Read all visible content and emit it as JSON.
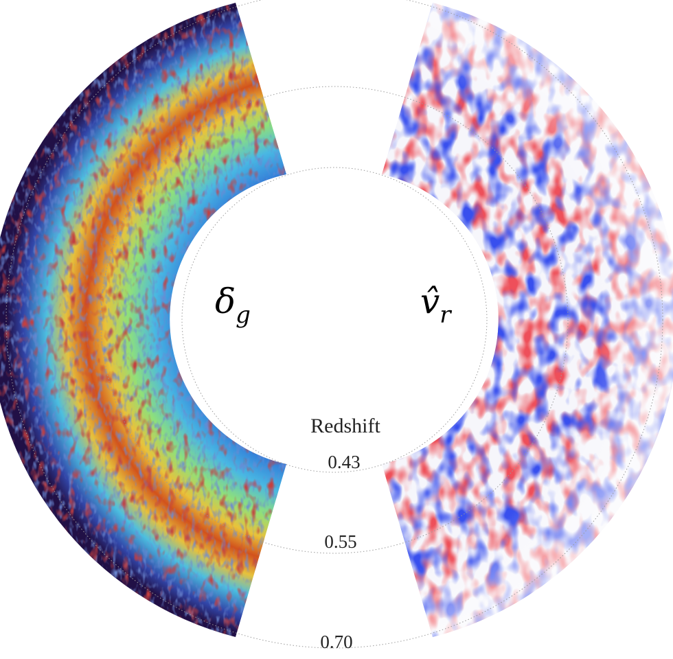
{
  "panels": {
    "left": {
      "symbol": "δ",
      "subscript": "g",
      "colormap": "turbo-like density (dark blue → cyan → yellow → dark red)"
    },
    "right": {
      "symbol": "v̂",
      "subscript": "r",
      "colormap": "diverging blue–white–red"
    }
  },
  "redshift": {
    "title": "Redshift",
    "ticks": [
      "0.43",
      "0.55",
      "0.70"
    ]
  },
  "colors": {
    "density_low": "#2a0f4a",
    "density_mid": "#4fc4e8",
    "density_high": "#8b0c0c",
    "velocity_negative": "#0a14d8",
    "velocity_positive": "#d8141a",
    "guide": "#9a9a9a"
  }
}
